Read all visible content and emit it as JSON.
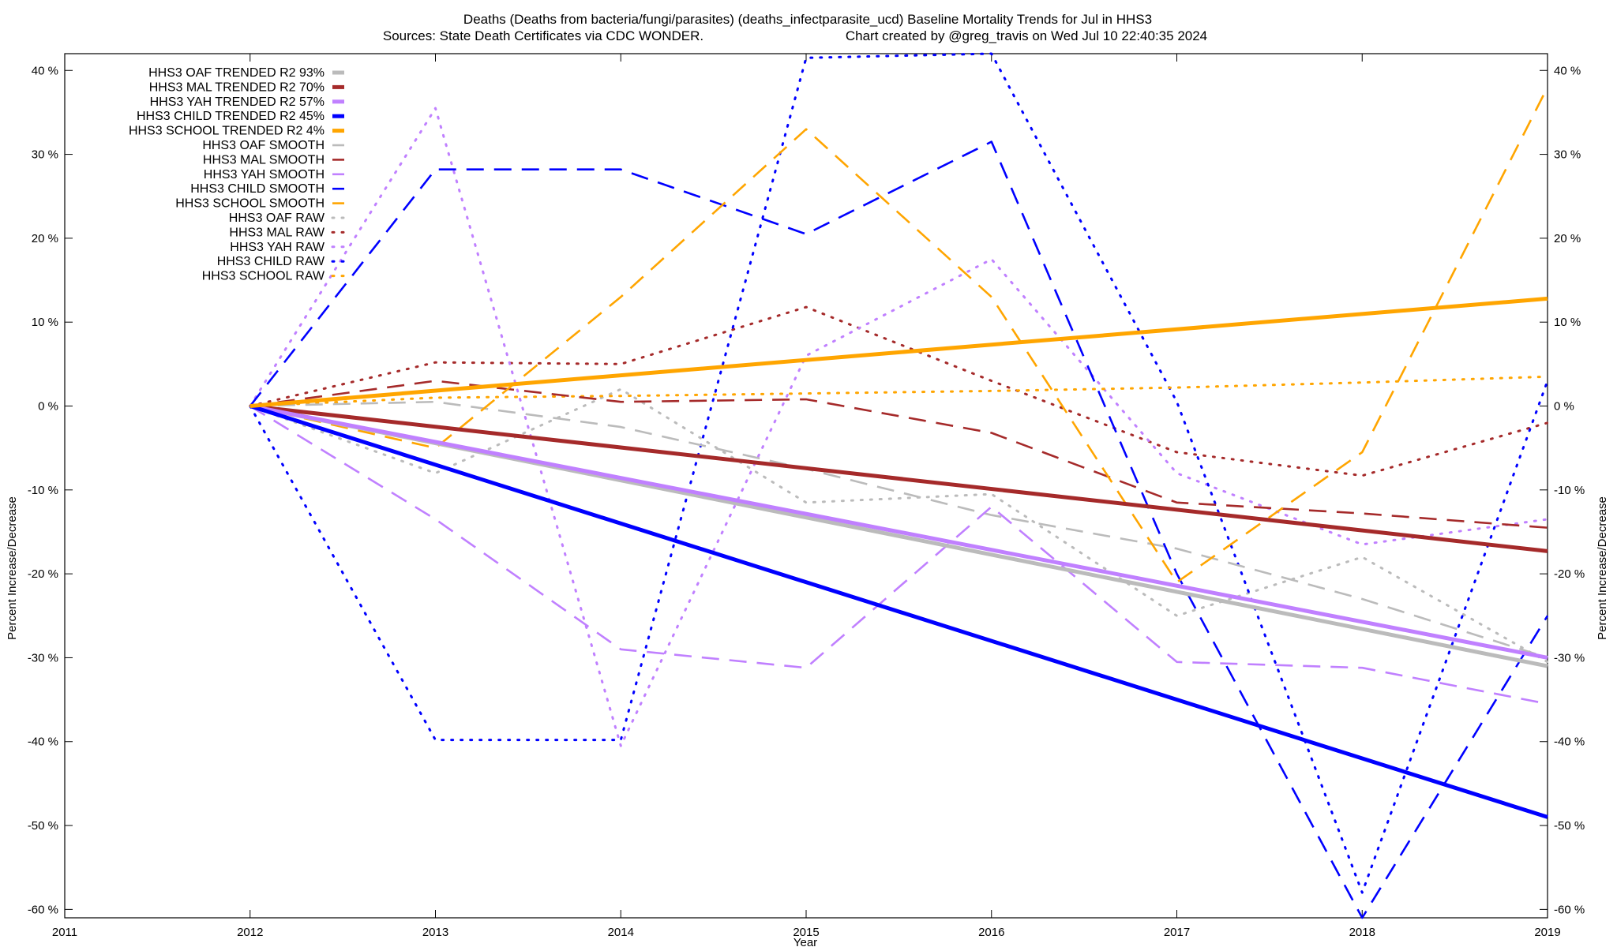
{
  "chart_data": {
    "type": "line",
    "title": "Deaths (Deaths from bacteria/fungi/parasites) (deaths_infectparasite_ucd)  Baseline Mortality Trends for Jul in HHS3",
    "subtitle_left": "Sources: State Death Certificates via CDC WONDER.",
    "subtitle_right": "Chart created by @greg_travis on Wed Jul 10 22:40:35 2024",
    "xlabel": "Year",
    "ylabel_left": "Percent Increase/Decrease",
    "ylabel_right": "Percent Increase/Decrease",
    "xlim": [
      2011,
      2019
    ],
    "ylim": [
      -61,
      42
    ],
    "x_ticks": [
      2011,
      2012,
      2013,
      2014,
      2015,
      2016,
      2017,
      2018,
      2019
    ],
    "y_ticks": [
      -60,
      -50,
      -40,
      -30,
      -20,
      -10,
      0,
      10,
      20,
      30,
      40
    ],
    "y_tick_labels": [
      "-60 %",
      "-50 %",
      "-40 %",
      "-30 %",
      "-20 %",
      "-10 %",
      "0 %",
      "10 %",
      "20 %",
      "30 %",
      "40 %"
    ],
    "legend_position": "top-left",
    "grid": false,
    "series": [
      {
        "name": "HHS3 OAF TRENDED R2  93%",
        "style": "solid",
        "color": "#bbbbbb",
        "x": [
          2012,
          2019
        ],
        "y": [
          0,
          -31
        ]
      },
      {
        "name": "HHS3 MAL TRENDED R2  70%",
        "style": "solid",
        "color": "#a52a2a",
        "x": [
          2012,
          2019
        ],
        "y": [
          0,
          -17.3
        ]
      },
      {
        "name": "HHS3 YAH TRENDED R2  57%",
        "style": "solid",
        "color": "#c080ff",
        "x": [
          2012,
          2019
        ],
        "y": [
          0,
          -30
        ]
      },
      {
        "name": "HHS3 CHILD TRENDED R2  45%",
        "style": "solid",
        "color": "#0000ff",
        "x": [
          2012,
          2019
        ],
        "y": [
          0,
          -49
        ]
      },
      {
        "name": "HHS3 SCHOOL TRENDED R2   4%",
        "style": "solid",
        "color": "#ffa500",
        "x": [
          2012,
          2019
        ],
        "y": [
          0,
          12.8
        ]
      },
      {
        "name": "HHS3 OAF SMOOTH",
        "style": "dashed",
        "color": "#bbbbbb",
        "x": [
          2012,
          2013,
          2014,
          2015,
          2016,
          2017,
          2018,
          2019
        ],
        "y": [
          0,
          0.5,
          -2.5,
          -7.5,
          -13,
          -17,
          -23,
          -30
        ]
      },
      {
        "name": "HHS3 MAL SMOOTH",
        "style": "dashed",
        "color": "#a52a2a",
        "x": [
          2012,
          2013,
          2014,
          2015,
          2016,
          2017,
          2018,
          2019
        ],
        "y": [
          0,
          3,
          0.5,
          0.8,
          -3.2,
          -11.5,
          -12.8,
          -14.5
        ]
      },
      {
        "name": "HHS3 YAH SMOOTH",
        "style": "dashed",
        "color": "#c080ff",
        "x": [
          2012,
          2013,
          2014,
          2015,
          2016,
          2017,
          2018,
          2019
        ],
        "y": [
          0,
          -13.5,
          -29,
          -31.2,
          -12,
          -30.5,
          -31.2,
          -35.5
        ]
      },
      {
        "name": "HHS3 CHILD SMOOTH",
        "style": "dashed",
        "color": "#0000ff",
        "x": [
          2012,
          2013,
          2014,
          2015,
          2016,
          2017,
          2018,
          2019
        ],
        "y": [
          0,
          28.2,
          28.2,
          20.5,
          31.5,
          -20,
          -61,
          -25
        ]
      },
      {
        "name": "HHS3 SCHOOL SMOOTH",
        "style": "dashed",
        "color": "#ffa500",
        "x": [
          2012,
          2013,
          2014,
          2015,
          2016,
          2017,
          2018,
          2019
        ],
        "y": [
          0,
          -5,
          13,
          33,
          13,
          -21,
          -5.5,
          38
        ]
      },
      {
        "name": "HHS3 OAF RAW",
        "style": "dotted",
        "color": "#bbbbbb",
        "x": [
          2012,
          2013,
          2014,
          2015,
          2016,
          2017,
          2018,
          2019
        ],
        "y": [
          0,
          -8,
          2,
          -11.5,
          -10.5,
          -25,
          -18,
          -30.5
        ]
      },
      {
        "name": "HHS3 MAL RAW",
        "style": "dotted",
        "color": "#a52a2a",
        "x": [
          2012,
          2013,
          2014,
          2015,
          2016,
          2017,
          2018,
          2019
        ],
        "y": [
          0,
          5.2,
          5,
          11.8,
          3,
          -5.5,
          -8.3,
          -2
        ]
      },
      {
        "name": "HHS3 YAH RAW",
        "style": "dotted",
        "color": "#c080ff",
        "x": [
          2012,
          2013,
          2014,
          2015,
          2016,
          2017,
          2018,
          2019
        ],
        "y": [
          0,
          35.5,
          -40.5,
          6,
          17.5,
          -8,
          -16.5,
          -13.5
        ]
      },
      {
        "name": "HHS3 CHILD RAW",
        "style": "dotted",
        "color": "#0000ff",
        "x": [
          2012,
          2013,
          2014,
          2015,
          2016,
          2017,
          2018,
          2019
        ],
        "y": [
          0,
          -39.8,
          -39.8,
          41.5,
          42,
          0.5,
          -58,
          3
        ]
      },
      {
        "name": "HHS3 SCHOOL RAW",
        "style": "dotted",
        "color": "#ffa500",
        "x": [
          2012,
          2013,
          2014,
          2015,
          2016,
          2017,
          2018,
          2019
        ],
        "y": [
          0,
          1,
          1.2,
          1.5,
          1.8,
          2.2,
          2.8,
          3.5
        ]
      }
    ]
  }
}
